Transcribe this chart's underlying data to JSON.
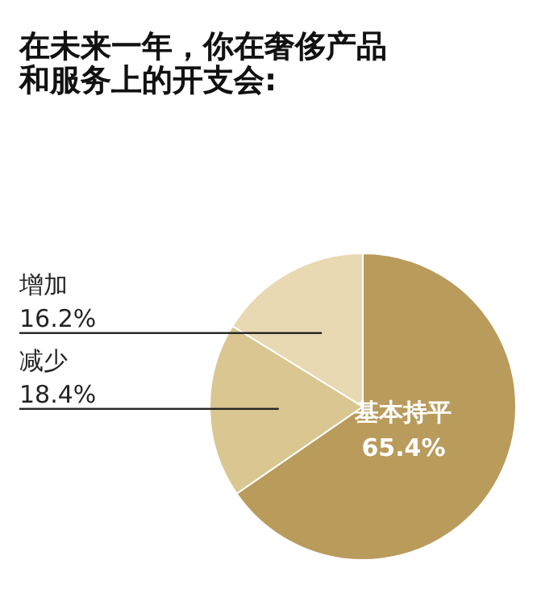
{
  "chart_data": {
    "type": "pie",
    "title": "在未来一年，你在奢侈产品和服务上的开支会:",
    "categories": [
      "基本持平",
      "减少",
      "增加"
    ],
    "values": [
      65.4,
      18.4,
      16.2
    ],
    "colors": [
      "#b99b5c",
      "#dac690",
      "#e8d9b2"
    ],
    "value_labels": [
      "65.4%",
      "18.4%",
      "16.2%"
    ],
    "legend": false
  }
}
